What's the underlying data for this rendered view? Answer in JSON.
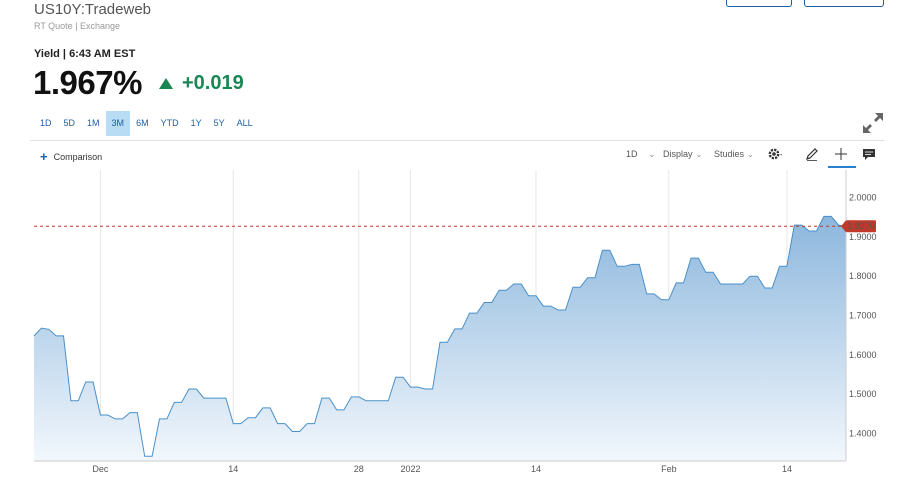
{
  "header": {
    "symbol": "US10Y:Tradeweb",
    "subtitle": "RT Quote | Exchange",
    "yield_label": "Yield | 6:43 AM EST",
    "price": "1.967%",
    "change": "+0.019",
    "change_color": "#1a8754",
    "change_icon": "up-triangle-icon"
  },
  "ranges": {
    "items": [
      "1D",
      "5D",
      "1M",
      "3M",
      "6M",
      "YTD",
      "1Y",
      "5Y",
      "ALL"
    ],
    "active": "3M"
  },
  "toolbar": {
    "comparison": "Comparison",
    "interval": "1D",
    "display": "Display",
    "studies": "Studies",
    "icons": [
      "settings-gear-icon",
      "pencil-draw-icon",
      "crosshair-icon",
      "comment-icon",
      "expand-icon"
    ]
  },
  "colors": {
    "accent": "#1e5fa5",
    "line": "#4a90c8",
    "area_top": "#8cb7dd",
    "area_bottom": "#f2f7fc",
    "last_price_tag": "#c0392b"
  },
  "chart_data": {
    "type": "area",
    "last_price_label": "1.9270",
    "last_price": 1.927,
    "ylim": [
      1.33,
      2.07
    ],
    "y_ticks": [
      1.4,
      1.5,
      1.6,
      1.7,
      1.8,
      1.9,
      2.0
    ],
    "y_tick_labels": [
      "1.4000",
      "1.5000",
      "1.6000",
      "1.7000",
      "1.8000",
      "1.9000",
      "2.0000"
    ],
    "x_ticks": [
      {
        "label": "Dec",
        "x": 9
      },
      {
        "label": "14",
        "x": 27
      },
      {
        "label": "28",
        "x": 44
      },
      {
        "label": "2022",
        "x": 51
      },
      {
        "label": "14",
        "x": 68
      },
      {
        "label": "Feb",
        "x": 86
      },
      {
        "label": "14",
        "x": 102
      }
    ],
    "x": [
      0,
      1,
      2,
      3,
      4,
      5,
      6,
      7,
      8,
      9,
      10,
      11,
      12,
      13,
      14,
      15,
      16,
      17,
      18,
      19,
      20,
      21,
      22,
      23,
      24,
      25,
      26,
      27,
      28,
      29,
      30,
      31,
      32,
      33,
      34,
      35,
      36,
      37,
      38,
      39,
      40,
      41,
      42,
      43,
      44,
      45,
      46,
      47,
      48,
      49,
      50,
      51,
      52,
      53,
      54,
      55,
      56,
      57,
      58,
      59,
      60,
      61,
      62,
      63,
      64,
      65,
      66,
      67,
      68,
      69,
      70,
      71,
      72,
      73,
      74,
      75,
      76,
      77,
      78,
      79,
      80,
      81,
      82,
      83,
      84,
      85,
      86,
      87,
      88,
      89,
      90,
      91,
      92,
      93,
      94,
      95,
      96,
      97,
      98,
      99,
      100,
      101,
      102,
      103,
      104,
      105,
      106,
      107,
      108,
      109,
      110
    ],
    "values": [
      1.648,
      1.668,
      1.665,
      1.648,
      1.648,
      1.483,
      1.483,
      1.531,
      1.531,
      1.447,
      1.447,
      1.437,
      1.437,
      1.453,
      1.453,
      1.342,
      1.342,
      1.437,
      1.437,
      1.479,
      1.479,
      1.513,
      1.513,
      1.49,
      1.49,
      1.49,
      1.49,
      1.425,
      1.425,
      1.44,
      1.44,
      1.465,
      1.465,
      1.425,
      1.425,
      1.405,
      1.405,
      1.425,
      1.425,
      1.49,
      1.49,
      1.46,
      1.46,
      1.493,
      1.493,
      1.483,
      1.483,
      1.483,
      1.483,
      1.543,
      1.543,
      1.518,
      1.518,
      1.513,
      1.513,
      1.632,
      1.632,
      1.666,
      1.666,
      1.706,
      1.706,
      1.733,
      1.733,
      1.764,
      1.764,
      1.78,
      1.78,
      1.75,
      1.75,
      1.724,
      1.724,
      1.714,
      1.714,
      1.772,
      1.772,
      1.796,
      1.796,
      1.866,
      1.866,
      1.825,
      1.825,
      1.83,
      1.83,
      1.755,
      1.755,
      1.74,
      1.74,
      1.783,
      1.783,
      1.846,
      1.846,
      1.81,
      1.81,
      1.78,
      1.78,
      1.78,
      1.78,
      1.8,
      1.8,
      1.77,
      1.77,
      1.825,
      1.825,
      1.93,
      1.93,
      1.915,
      1.915,
      1.952,
      1.952,
      1.93,
      1.927
    ],
    "vgrid_x": [
      9,
      27,
      44,
      51,
      68,
      86,
      102
    ],
    "grid": true
  }
}
